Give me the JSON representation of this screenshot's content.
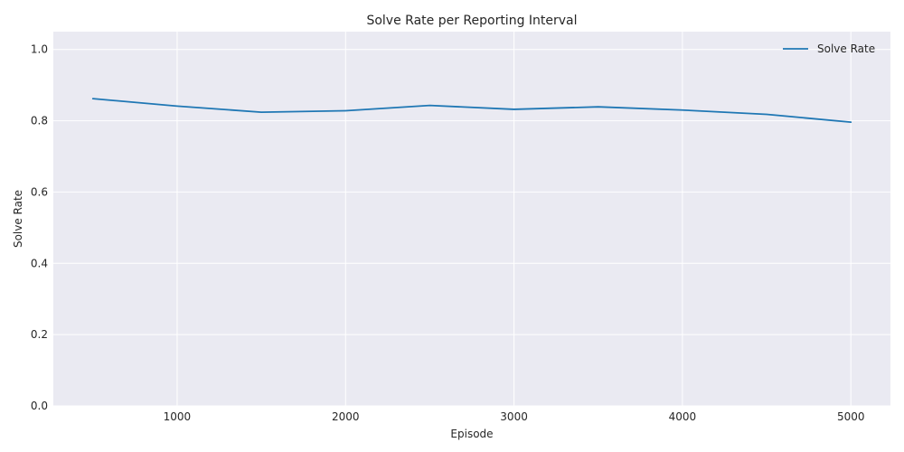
{
  "chart_data": {
    "type": "line",
    "title": "Solve Rate per Reporting Interval",
    "xlabel": "Episode",
    "ylabel": "Solve Rate",
    "xlim": [
      265,
      5235
    ],
    "ylim": [
      0,
      1.05
    ],
    "x_ticks": [
      1000,
      2000,
      3000,
      4000,
      5000
    ],
    "y_ticks": [
      0.0,
      0.2,
      0.4,
      0.6,
      0.8,
      1.0
    ],
    "x_tick_labels": [
      "1000",
      "2000",
      "3000",
      "4000",
      "5000"
    ],
    "y_tick_labels": [
      "0.0",
      "0.2",
      "0.4",
      "0.6",
      "0.8",
      "1.0"
    ],
    "grid": true,
    "legend_position": "top-right",
    "series": [
      {
        "name": "Solve Rate",
        "color": "#1f77b4",
        "x": [
          500,
          1000,
          1500,
          2000,
          2500,
          3000,
          3500,
          4000,
          4500,
          5000
        ],
        "y": [
          0.862,
          0.841,
          0.824,
          0.828,
          0.843,
          0.832,
          0.839,
          0.83,
          0.818,
          0.796
        ]
      }
    ]
  }
}
